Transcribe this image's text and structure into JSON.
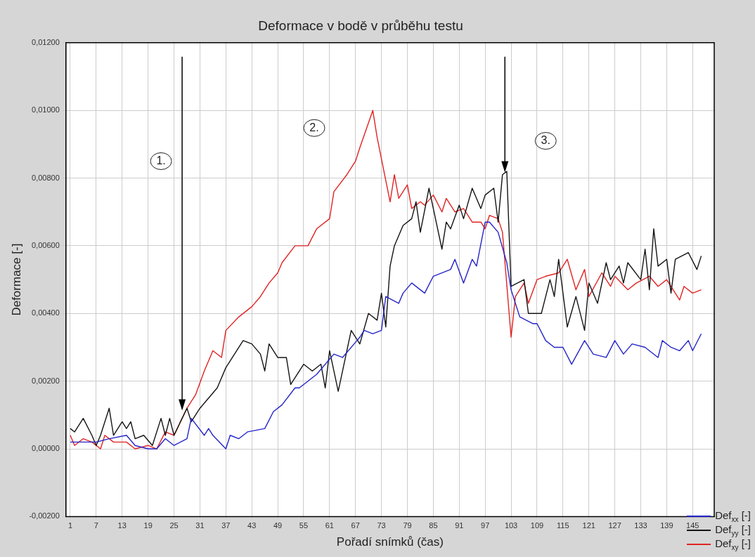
{
  "chart_data": {
    "type": "line",
    "title": "Deformace v bodě v průběhu testu",
    "xlabel": "Pořadí snímků (čas)",
    "ylabel": "Deformace [-]",
    "xlim": [
      0,
      150
    ],
    "xticks": [
      1,
      7,
      13,
      19,
      25,
      31,
      37,
      43,
      49,
      55,
      61,
      67,
      73,
      79,
      85,
      91,
      97,
      103,
      109,
      115,
      121,
      127,
      133,
      139,
      145
    ],
    "ylim": [
      -0.002,
      0.012
    ],
    "yticks": [
      {
        "value": -0.002,
        "label": "-0,00200"
      },
      {
        "value": 0,
        "label": "0,00000"
      },
      {
        "value": 0.002,
        "label": "0,00200"
      },
      {
        "value": 0.004,
        "label": "0,00400"
      },
      {
        "value": 0.006,
        "label": "0,00600"
      },
      {
        "value": 0.008,
        "label": "0,00800"
      },
      {
        "value": 0.01,
        "label": "0,01000"
      },
      {
        "value": 0.012,
        "label": "0,01200"
      }
    ],
    "grid": true,
    "legend": "bottom right",
    "marker": "none",
    "line_style": "solid",
    "annotations": [
      {
        "text": "1.",
        "x": 22,
        "y": 0.0085
      },
      "2.",
      {
        "text": "3.",
        "x": 111,
        "y": 0.0091
      }
    ],
    "series": [
      {
        "name": "Def$_{xx}$ [-]",
        "color": "#2424c8",
        "x": [
          1,
          4,
          7,
          10,
          14,
          16,
          19,
          21,
          23,
          25,
          28,
          29,
          32,
          33,
          34,
          37,
          38,
          40,
          42,
          46,
          48,
          50,
          53,
          54,
          58,
          62,
          64,
          68,
          69,
          71,
          73,
          74,
          77,
          78,
          80,
          83,
          85,
          89,
          90,
          92,
          94,
          95,
          97,
          98,
          100,
          102,
          103,
          105,
          108,
          109,
          111,
          113,
          115,
          117,
          120,
          122,
          125,
          127,
          129,
          131,
          134,
          137,
          138,
          140,
          142,
          144,
          145,
          147
        ],
        "values": [
          0.0002,
          0.0002,
          0.0002,
          0.0003,
          0.0004,
          0.0001,
          0.0,
          0.0,
          0.0003,
          0.0001,
          0.0003,
          0.0009,
          0.0004,
          0.0006,
          0.0004,
          0.0,
          0.0004,
          0.0003,
          0.0005,
          0.0006,
          0.0011,
          0.0013,
          0.0018,
          0.0018,
          0.0022,
          0.0028,
          0.0027,
          0.0033,
          0.0035,
          0.0034,
          0.0035,
          0.0045,
          0.0043,
          0.0046,
          0.0049,
          0.0046,
          0.0051,
          0.0053,
          0.0056,
          0.0049,
          0.0056,
          0.0054,
          0.0067,
          0.0067,
          0.0064,
          0.0055,
          0.0047,
          0.0039,
          0.0037,
          0.0037,
          0.0032,
          0.003,
          0.003,
          0.0025,
          0.0032,
          0.0028,
          0.0027,
          0.0032,
          0.0028,
          0.0031,
          0.003,
          0.0027,
          0.0032,
          0.003,
          0.0029,
          0.0032,
          0.0029,
          0.0034
        ]
      },
      {
        "name": "Def$_{yy}$ [-]",
        "color": "#141414",
        "x": [
          1,
          2,
          4,
          6,
          7,
          8,
          10,
          11,
          13,
          14,
          15,
          16,
          18,
          20,
          22,
          23,
          24,
          25,
          28,
          29,
          31,
          33,
          35,
          37,
          39,
          41,
          43,
          45,
          46,
          47,
          49,
          51,
          52,
          55,
          57,
          59,
          60,
          61,
          63,
          66,
          68,
          70,
          72,
          73,
          74,
          75,
          76,
          78,
          80,
          81,
          82,
          84,
          85,
          87,
          88,
          89,
          91,
          92,
          94,
          96,
          97,
          99,
          100,
          101,
          102,
          103,
          106,
          107,
          110,
          112,
          113,
          114,
          116,
          118,
          120,
          121,
          123,
          125,
          126,
          128,
          129,
          130,
          133,
          134,
          135,
          136,
          137,
          139,
          140,
          141,
          144,
          146,
          147
        ],
        "values": [
          0.0006,
          0.0005,
          0.0009,
          0.0004,
          0.0001,
          0.0004,
          0.0012,
          0.0004,
          0.0008,
          0.0006,
          0.0008,
          0.0003,
          0.0004,
          0.0001,
          0.0009,
          0.0004,
          0.0009,
          0.0004,
          0.0012,
          0.0008,
          0.0012,
          0.0015,
          0.0018,
          0.0024,
          0.0028,
          0.0032,
          0.0031,
          0.0028,
          0.0023,
          0.0031,
          0.0027,
          0.0027,
          0.0019,
          0.0025,
          0.0023,
          0.0025,
          0.0018,
          0.0029,
          0.0017,
          0.0035,
          0.0031,
          0.004,
          0.0038,
          0.0046,
          0.0036,
          0.0054,
          0.006,
          0.0066,
          0.0068,
          0.0073,
          0.0064,
          0.0077,
          0.0071,
          0.0059,
          0.0067,
          0.0065,
          0.0072,
          0.0068,
          0.0077,
          0.0071,
          0.0075,
          0.0077,
          0.0067,
          0.0081,
          0.0082,
          0.0048,
          0.005,
          0.004,
          0.004,
          0.005,
          0.0045,
          0.0056,
          0.0036,
          0.0045,
          0.0035,
          0.0049,
          0.0043,
          0.0055,
          0.005,
          0.0054,
          0.0049,
          0.0055,
          0.005,
          0.0059,
          0.0047,
          0.0065,
          0.0054,
          0.0056,
          0.0046,
          0.0056,
          0.0058,
          0.0053,
          0.0057
        ]
      },
      {
        "name": "Def$_{xy}$ [-]",
        "color": "#e02424",
        "x": [
          1,
          2,
          4,
          6,
          8,
          9,
          11,
          14,
          16,
          19,
          21,
          23,
          25,
          28,
          30,
          32,
          34,
          36,
          37,
          40,
          43,
          45,
          47,
          49,
          50,
          53,
          56,
          58,
          61,
          62,
          65,
          67,
          68,
          71,
          72,
          75,
          76,
          77,
          79,
          80,
          82,
          83,
          85,
          87,
          88,
          90,
          92,
          94,
          96,
          97,
          98,
          100,
          101,
          103,
          104,
          106,
          107,
          109,
          111,
          114,
          116,
          118,
          120,
          121,
          124,
          126,
          127,
          130,
          132,
          135,
          137,
          139,
          142,
          143,
          145,
          147
        ],
        "values": [
          0.0004,
          0.0001,
          0.0003,
          0.0002,
          0.0,
          0.0004,
          0.0002,
          0.0002,
          0.0,
          0.0001,
          0.0,
          0.0005,
          0.0004,
          0.0012,
          0.0016,
          0.0023,
          0.0029,
          0.0027,
          0.0035,
          0.0039,
          0.0042,
          0.0045,
          0.0049,
          0.0052,
          0.0055,
          0.006,
          0.006,
          0.0065,
          0.0068,
          0.0076,
          0.0081,
          0.0085,
          0.0089,
          0.01,
          0.0092,
          0.0073,
          0.0081,
          0.0074,
          0.0078,
          0.0071,
          0.0073,
          0.0072,
          0.0075,
          0.007,
          0.0074,
          0.007,
          0.0071,
          0.0067,
          0.0067,
          0.0065,
          0.0069,
          0.0068,
          0.0064,
          0.0033,
          0.0045,
          0.0049,
          0.0043,
          0.005,
          0.0051,
          0.0052,
          0.0056,
          0.0047,
          0.0053,
          0.0045,
          0.0052,
          0.0048,
          0.0051,
          0.0047,
          0.0049,
          0.0051,
          0.0048,
          0.005,
          0.0044,
          0.0048,
          0.0046,
          0.0047
        ]
      }
    ]
  }
}
